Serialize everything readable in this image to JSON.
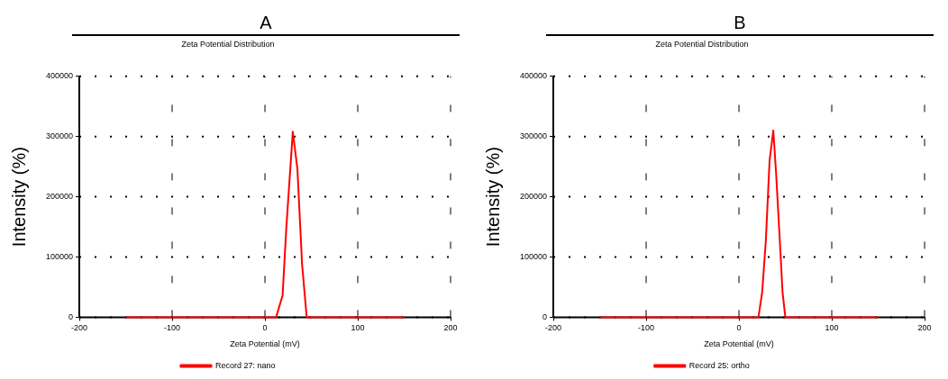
{
  "chart_data": [
    {
      "type": "line",
      "title": "A",
      "subtitle": "Zeta Potential Distribution",
      "xlabel": "Zeta Potential (mV)",
      "ylabel": "Intensity (%)",
      "series": [
        {
          "name": "Record 27: nano",
          "color": "#ff0000",
          "x": [
            -150,
            0,
            12,
            19,
            23,
            30,
            35,
            40,
            45,
            100,
            150
          ],
          "values": [
            0,
            0,
            0,
            36000,
            148000,
            308000,
            246000,
            88000,
            0,
            0,
            0
          ]
        }
      ],
      "xlim": [
        -200,
        200
      ],
      "xticks": [
        -200,
        -100,
        0,
        100,
        200
      ],
      "ylim": [
        0,
        400000
      ],
      "yticks": [
        0,
        100000,
        200000,
        300000,
        400000
      ],
      "grid": true,
      "legend": "bottom",
      "marker": "none",
      "line_style": "solid"
    },
    {
      "type": "line",
      "title": "B",
      "subtitle": "Zeta Potential Distribution",
      "xlabel": "Zeta Potential (mV)",
      "ylabel": "Intensity (%)",
      "series": [
        {
          "name": "Record 25: ortho",
          "color": "#ff0000",
          "x": [
            -150,
            0,
            21,
            25,
            29,
            33,
            37,
            40,
            44,
            47,
            50,
            100,
            150
          ],
          "values": [
            0,
            0,
            0,
            41000,
            128000,
            260000,
            310000,
            240000,
            128000,
            41000,
            0,
            0,
            0
          ]
        }
      ],
      "xlim": [
        -200,
        200
      ],
      "xticks": [
        -200,
        -100,
        0,
        100,
        200
      ],
      "ylim": [
        0,
        400000
      ],
      "yticks": [
        0,
        100000,
        200000,
        300000,
        400000
      ],
      "grid": true,
      "legend": "bottom",
      "marker": "none",
      "line_style": "solid"
    }
  ]
}
